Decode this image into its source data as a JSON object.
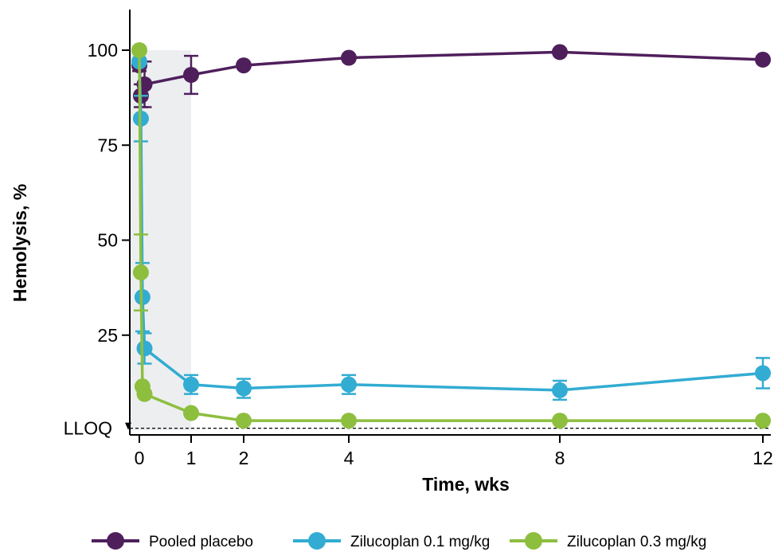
{
  "chart_data": {
    "type": "line",
    "xlabel": "Time, wks",
    "ylabel": "Hemolysis, %",
    "x_ticks": [
      0,
      1,
      2,
      4,
      8,
      12
    ],
    "y_ticks": [
      25,
      50,
      75,
      100
    ],
    "lloq_label": "LLOQ",
    "lloq_value": 0.5,
    "xlim": [
      -0.3,
      12.2
    ],
    "ylim": [
      -1,
      110
    ],
    "shaded_region": [
      0,
      1
    ],
    "legend_position": "bottom",
    "series": [
      {
        "name": "Pooled placebo",
        "color": "#4f1f5c",
        "points": [
          {
            "x": 0,
            "y": 96,
            "err": 1.5
          },
          {
            "x": 0.03,
            "y": 88,
            "err": 3
          },
          {
            "x": 0.1,
            "y": 91,
            "err": 6
          },
          {
            "x": 1,
            "y": 93.5,
            "err": 5
          },
          {
            "x": 2,
            "y": 96,
            "err": 0
          },
          {
            "x": 4,
            "y": 98,
            "err": 0
          },
          {
            "x": 8,
            "y": 99.5,
            "err": 0
          },
          {
            "x": 12,
            "y": 97.5,
            "err": 0
          }
        ]
      },
      {
        "name": "Zilucoplan 0.1 mg/kg",
        "color": "#32acd2",
        "points": [
          {
            "x": 0,
            "y": 97,
            "err": 0
          },
          {
            "x": 0.03,
            "y": 82,
            "err": 6
          },
          {
            "x": 0.06,
            "y": 35,
            "err": 9
          },
          {
            "x": 0.1,
            "y": 21.5,
            "err": 4
          },
          {
            "x": 1,
            "y": 12,
            "err": 2.5
          },
          {
            "x": 2,
            "y": 11,
            "err": 2.5
          },
          {
            "x": 4,
            "y": 12,
            "err": 2.5
          },
          {
            "x": 8,
            "y": 10.5,
            "err": 2.5
          },
          {
            "x": 12,
            "y": 15,
            "err": 4
          }
        ]
      },
      {
        "name": "Zilucoplan 0.3 mg/kg",
        "color": "#8dbe3e",
        "points": [
          {
            "x": 0,
            "y": 100,
            "err": 0
          },
          {
            "x": 0.03,
            "y": 41.5,
            "err": 10
          },
          {
            "x": 0.06,
            "y": 11.5,
            "err": 0
          },
          {
            "x": 0.1,
            "y": 9.5,
            "err": 0
          },
          {
            "x": 1,
            "y": 4.5,
            "err": 0
          },
          {
            "x": 2,
            "y": 2.5,
            "err": 0
          },
          {
            "x": 4,
            "y": 2.5,
            "err": 0
          },
          {
            "x": 8,
            "y": 2.5,
            "err": 0
          },
          {
            "x": 12,
            "y": 2.5,
            "err": 0
          }
        ]
      }
    ]
  }
}
